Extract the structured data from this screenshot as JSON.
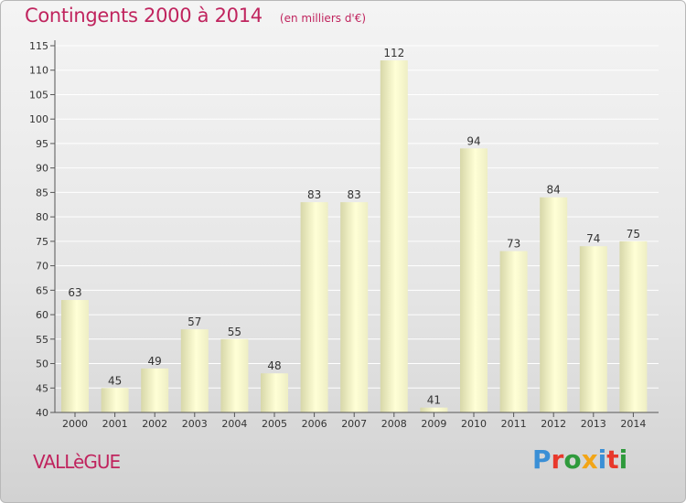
{
  "header": {
    "title": "Contingents 2000 à 2014",
    "unit": "(en milliers d'€)"
  },
  "footer": {
    "commune": "VALLèGUE",
    "brand": "Proxiti",
    "brand_colors": [
      "#3a8fd6",
      "#e8382b",
      "#2f9a3c",
      "#f2a516",
      "#3a8fd6",
      "#e8382b",
      "#2f9a3c"
    ]
  },
  "colors": {
    "bar_light": "#ffffd6",
    "bar_dark": "#d7d7a9",
    "grid": "#ffffff",
    "axis": "#555555",
    "title": "#c0245e"
  },
  "chart_data": {
    "type": "bar",
    "categories": [
      "2000",
      "2001",
      "2002",
      "2003",
      "2004",
      "2005",
      "2006",
      "2007",
      "2008",
      "2009",
      "2010",
      "2011",
      "2012",
      "2013",
      "2014"
    ],
    "values": [
      63,
      45,
      49,
      57,
      55,
      48,
      83,
      83,
      112,
      41,
      94,
      73,
      84,
      74,
      75
    ],
    "ylim": [
      40,
      115
    ],
    "yticks": [
      40,
      45,
      50,
      55,
      60,
      65,
      70,
      75,
      80,
      85,
      90,
      95,
      100,
      105,
      110,
      115
    ],
    "grid": true,
    "data_labels": true
  }
}
